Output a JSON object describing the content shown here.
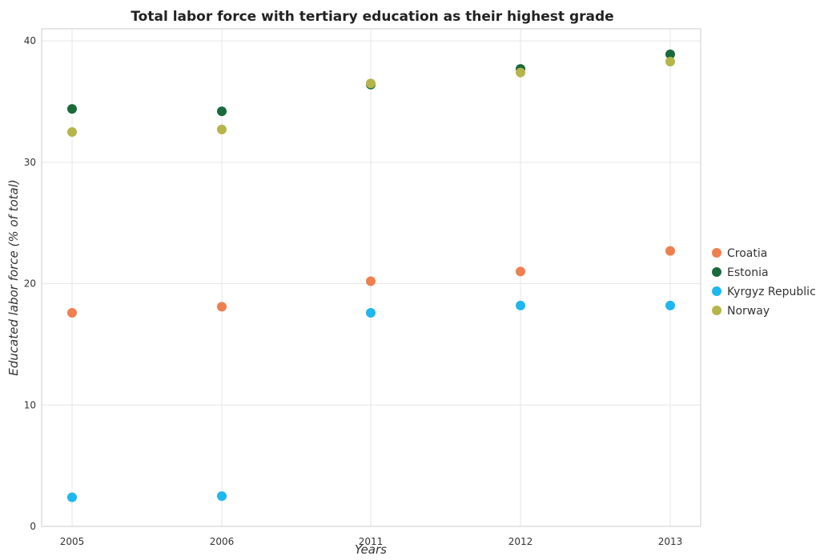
{
  "chart_data": {
    "type": "scatter",
    "title": "Total labor force with tertiary education as their highest grade",
    "xlabel": "Years",
    "ylabel": "Educated labor force (% of total)",
    "categories": [
      "2005",
      "2006",
      "2011",
      "2012",
      "2013"
    ],
    "yticks": [
      "0",
      "10",
      "20",
      "30",
      "40"
    ],
    "ylim": [
      0,
      41
    ],
    "grid": true,
    "legend_position": "right",
    "series": [
      {
        "name": "Croatia",
        "color": "#f07f4f",
        "values": [
          17.6,
          18.1,
          20.2,
          21.0,
          22.7
        ]
      },
      {
        "name": "Estonia",
        "color": "#1a6b3c",
        "values": [
          34.4,
          34.2,
          36.4,
          37.7,
          38.9
        ]
      },
      {
        "name": "Kyrgyz Republic",
        "color": "#1eb7f0",
        "values": [
          2.4,
          2.5,
          17.6,
          18.2,
          18.2
        ]
      },
      {
        "name": "Norway",
        "color": "#b5b54a",
        "values": [
          32.5,
          32.7,
          36.5,
          37.4,
          38.3
        ]
      }
    ]
  }
}
